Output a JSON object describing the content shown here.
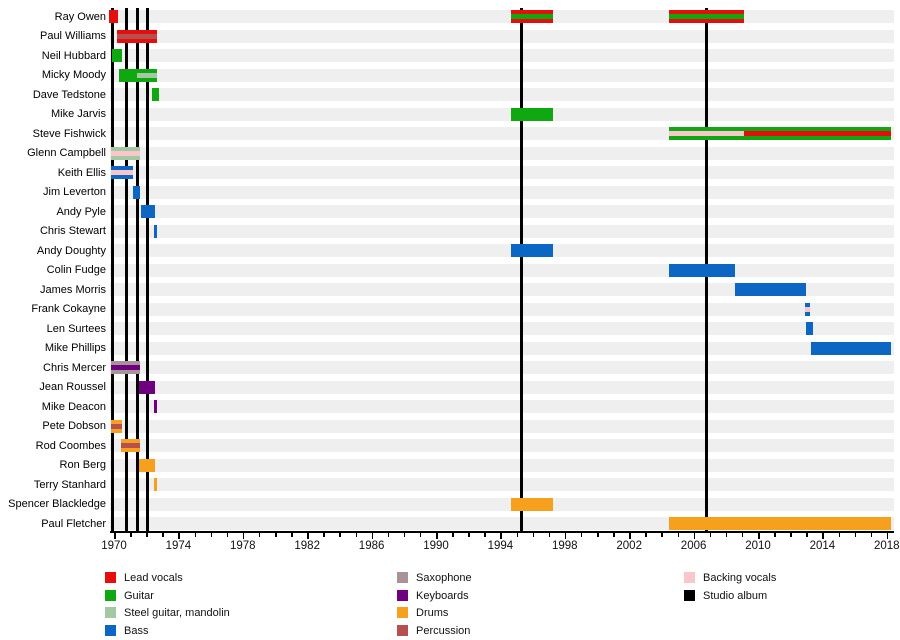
{
  "chart_data": {
    "type": "bar",
    "subtype": "band-member-timeline",
    "title": "",
    "grid": "horizontal row stripes",
    "x_axis": {
      "min_year": 1969.5,
      "max_year": 2018.3,
      "tick_labels": [
        1970,
        1974,
        1978,
        1982,
        1986,
        1990,
        1994,
        1998,
        2002,
        2006,
        2010,
        2014,
        2018
      ],
      "minor_tick_every_years": 1
    },
    "colors": {
      "red": "#e60d0d",
      "green": "#10a810",
      "steel": "#a3c9a3",
      "blue": "#0b66c4",
      "sax": "#a89399",
      "keys": "#6f0080",
      "drums": "#f7a01d",
      "perc": "#b5504e",
      "pink": "#f9c6cc",
      "black": "#000000"
    },
    "albums": [
      1969.88,
      1970.79,
      1971.47,
      1972.09,
      1995.28,
      2006.83
    ],
    "members": [
      {
        "name": "Ray Owen",
        "bars": [
          {
            "start": 1969.71,
            "end": 1970.27,
            "color": "red"
          },
          {
            "start": 1994.66,
            "end": 1997.27,
            "color": "red",
            "stripes": [
              {
                "start": 1994.66,
                "end": 1997.27,
                "color": "green"
              }
            ]
          },
          {
            "start": 2004.45,
            "end": 2009.13,
            "color": "red",
            "stripes": [
              {
                "start": 2004.45,
                "end": 2009.13,
                "color": "green"
              }
            ]
          }
        ]
      },
      {
        "name": "Paul Williams",
        "bars": [
          {
            "start": 1970.2,
            "end": 1972.7,
            "color": "red",
            "stripes": [
              {
                "start": 1970.2,
                "end": 1972.7,
                "color": "perc"
              }
            ]
          }
        ]
      },
      {
        "name": "Neil Hubbard",
        "bars": [
          {
            "start": 1969.85,
            "end": 1970.48,
            "color": "green"
          }
        ]
      },
      {
        "name": "Micky Moody",
        "bars": [
          {
            "start": 1970.3,
            "end": 1972.7,
            "color": "green",
            "stripes": [
              {
                "start": 1971.4,
                "end": 1972.7,
                "color": "steel"
              }
            ]
          }
        ]
      },
      {
        "name": "Dave Tedstone",
        "bars": [
          {
            "start": 1972.34,
            "end": 1972.8,
            "color": "green"
          }
        ]
      },
      {
        "name": "Mike Jarvis",
        "bars": [
          {
            "start": 1994.66,
            "end": 1997.27,
            "color": "green"
          }
        ]
      },
      {
        "name": "Steve Fishwick",
        "bars": [
          {
            "start": 2004.45,
            "end": 2018.28,
            "color": "green",
            "stripes": [
              {
                "start": 2004.45,
                "end": 2009.13,
                "color": "pink"
              },
              {
                "start": 2009.13,
                "end": 2018.28,
                "color": "red"
              }
            ]
          }
        ]
      },
      {
        "name": "Glenn Campbell",
        "bars": [
          {
            "start": 1969.8,
            "end": 1971.6,
            "color": "steel",
            "stripes": [
              {
                "start": 1969.8,
                "end": 1971.6,
                "color": "pink"
              }
            ]
          }
        ]
      },
      {
        "name": "Keith Ellis",
        "bars": [
          {
            "start": 1969.8,
            "end": 1971.2,
            "color": "blue",
            "stripes": [
              {
                "start": 1969.8,
                "end": 1971.2,
                "color": "pink"
              }
            ]
          }
        ]
      },
      {
        "name": "Jim Leverton",
        "bars": [
          {
            "start": 1971.16,
            "end": 1971.61,
            "color": "blue"
          }
        ]
      },
      {
        "name": "Andy Pyle",
        "bars": [
          {
            "start": 1971.7,
            "end": 1972.55,
            "color": "blue"
          }
        ]
      },
      {
        "name": "Chris Stewart",
        "bars": [
          {
            "start": 1972.48,
            "end": 1972.7,
            "color": "blue"
          }
        ]
      },
      {
        "name": "Andy Doughty",
        "bars": [
          {
            "start": 1994.66,
            "end": 1997.27,
            "color": "blue"
          }
        ]
      },
      {
        "name": "Colin Fudge",
        "bars": [
          {
            "start": 2004.45,
            "end": 2008.6,
            "color": "blue"
          }
        ]
      },
      {
        "name": "James Morris",
        "bars": [
          {
            "start": 2008.6,
            "end": 2013.0,
            "color": "blue"
          }
        ]
      },
      {
        "name": "Frank Cokayne",
        "bars": [
          {
            "start": 2012.95,
            "end": 2013.22,
            "color": "blue",
            "stripes": [
              {
                "start": 2012.95,
                "end": 2013.22,
                "color": "pink"
              }
            ]
          }
        ]
      },
      {
        "name": "Len Surtees",
        "bars": [
          {
            "start": 2013.0,
            "end": 2013.4,
            "color": "blue"
          }
        ]
      },
      {
        "name": "Mike Phillips",
        "bars": [
          {
            "start": 2013.3,
            "end": 2018.28,
            "color": "blue"
          }
        ]
      },
      {
        "name": "Chris Mercer",
        "bars": [
          {
            "start": 1969.8,
            "end": 1971.6,
            "color": "sax",
            "stripes": [
              {
                "start": 1969.8,
                "end": 1971.6,
                "color": "keys"
              }
            ]
          }
        ]
      },
      {
        "name": "Jean Roussel",
        "bars": [
          {
            "start": 1971.55,
            "end": 1972.55,
            "color": "keys"
          }
        ]
      },
      {
        "name": "Mike Deacon",
        "bars": [
          {
            "start": 1972.48,
            "end": 1972.7,
            "color": "keys"
          }
        ]
      },
      {
        "name": "Pete Dobson",
        "bars": [
          {
            "start": 1969.8,
            "end": 1970.48,
            "color": "drums",
            "stripes": [
              {
                "start": 1969.8,
                "end": 1970.48,
                "color": "perc"
              }
            ]
          }
        ]
      },
      {
        "name": "Rod Coombes",
        "bars": [
          {
            "start": 1970.45,
            "end": 1971.61,
            "color": "drums",
            "stripes": [
              {
                "start": 1970.45,
                "end": 1971.61,
                "color": "perc"
              }
            ]
          }
        ]
      },
      {
        "name": "Ron Berg",
        "bars": [
          {
            "start": 1971.57,
            "end": 1972.55,
            "color": "drums"
          }
        ]
      },
      {
        "name": "Terry Stanhard",
        "bars": [
          {
            "start": 1972.48,
            "end": 1972.7,
            "color": "drums"
          }
        ]
      },
      {
        "name": "Spencer Blackledge",
        "bars": [
          {
            "start": 1994.66,
            "end": 1997.27,
            "color": "drums"
          }
        ]
      },
      {
        "name": "Paul Fletcher",
        "bars": [
          {
            "start": 2004.45,
            "end": 2018.28,
            "color": "drums"
          }
        ]
      }
    ],
    "legend": {
      "columns": [
        {
          "items": [
            {
              "label": "Lead vocals",
              "color": "red"
            },
            {
              "label": "Guitar",
              "color": "green"
            },
            {
              "label": "Steel guitar, mandolin",
              "color": "steel"
            },
            {
              "label": "Bass",
              "color": "blue"
            }
          ]
        },
        {
          "items": [
            {
              "label": "Saxophone",
              "color": "sax"
            },
            {
              "label": "Keyboards",
              "color": "keys"
            },
            {
              "label": "Drums",
              "color": "drums"
            },
            {
              "label": "Percussion",
              "color": "perc"
            }
          ]
        },
        {
          "items": [
            {
              "label": "Backing vocals",
              "color": "pink"
            },
            {
              "label": "Studio album",
              "color": "black"
            }
          ]
        }
      ]
    }
  }
}
